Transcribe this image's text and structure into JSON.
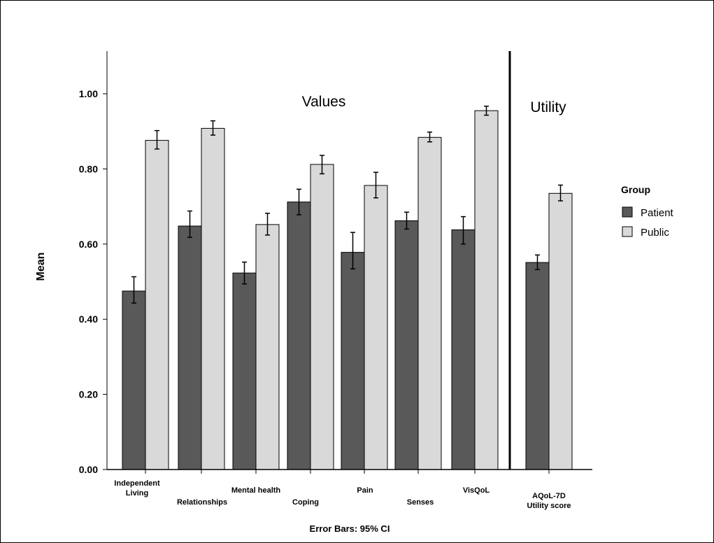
{
  "chart_data": {
    "type": "bar",
    "ylabel": "Mean",
    "footer": "Error Bars: 95% CI",
    "ylim": [
      0,
      1.1
    ],
    "yticks": [
      "0.00",
      "0.20",
      "0.40",
      "0.60",
      "0.80",
      "1.00"
    ],
    "ytick_values": [
      0,
      0.2,
      0.4,
      0.6,
      0.8,
      1.0
    ],
    "categories": [
      [
        "Independent",
        "Living"
      ],
      [
        "Relationships"
      ],
      [
        "Mental health"
      ],
      [
        "Coping"
      ],
      [
        "Pain"
      ],
      [
        "Senses"
      ],
      [
        "VisQoL"
      ],
      [
        "AQoL-7D",
        "Utility score"
      ]
    ],
    "series": [
      {
        "name": "Patient",
        "color": "#595959",
        "values": [
          0.475,
          0.648,
          0.523,
          0.712,
          0.578,
          0.662,
          0.638,
          0.551
        ],
        "ci_low": [
          0.443,
          0.618,
          0.494,
          0.678,
          0.534,
          0.64,
          0.6,
          0.532
        ],
        "ci_high": [
          0.513,
          0.688,
          0.552,
          0.746,
          0.631,
          0.685,
          0.673,
          0.571
        ]
      },
      {
        "name": "Public",
        "color": "#d9d9d9",
        "values": [
          0.876,
          0.908,
          0.652,
          0.812,
          0.756,
          0.884,
          0.955,
          0.735
        ],
        "ci_low": [
          0.853,
          0.89,
          0.624,
          0.787,
          0.723,
          0.872,
          0.943,
          0.715
        ],
        "ci_high": [
          0.902,
          0.928,
          0.682,
          0.836,
          0.791,
          0.898,
          0.967,
          0.757
        ]
      }
    ],
    "regions": [
      {
        "label": "Values"
      },
      {
        "label": "Utility"
      }
    ],
    "legend": {
      "title": "Group",
      "placement": "right",
      "entries": [
        "Patient",
        "Public"
      ]
    }
  }
}
